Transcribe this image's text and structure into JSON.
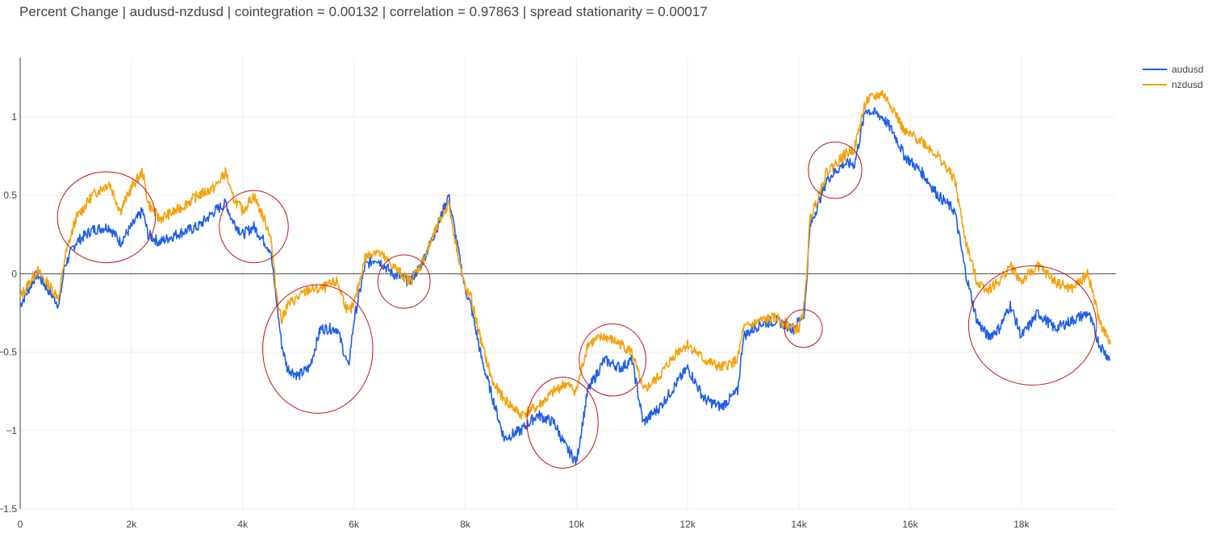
{
  "chart_data": {
    "type": "line",
    "title": "Percent Change | audusd-nzdusd | cointegration = 0.00132 | correlation = 0.97863 | spread stationarity = 0.00017",
    "xlabel": "",
    "ylabel": "",
    "xlim": [
      0,
      19700
    ],
    "ylim": [
      -1.5,
      1.38
    ],
    "x_ticks": [
      {
        "value": 0,
        "label": "0"
      },
      {
        "value": 2000,
        "label": "2k"
      },
      {
        "value": 4000,
        "label": "4k"
      },
      {
        "value": 6000,
        "label": "6k"
      },
      {
        "value": 8000,
        "label": "8k"
      },
      {
        "value": 10000,
        "label": "10k"
      },
      {
        "value": 12000,
        "label": "12k"
      },
      {
        "value": 14000,
        "label": "14k"
      },
      {
        "value": 16000,
        "label": "16k"
      },
      {
        "value": 18000,
        "label": "18k"
      }
    ],
    "y_ticks": [
      {
        "value": 1,
        "label": "1"
      },
      {
        "value": 0.5,
        "label": "0.5"
      },
      {
        "value": 0,
        "label": "0"
      },
      {
        "value": -0.5,
        "label": "−0.5"
      },
      {
        "value": -1,
        "label": "−1"
      },
      {
        "value": -1.5,
        "label": "−1.5"
      }
    ],
    "grid": true,
    "zero_line": true,
    "legend": {
      "position": "top-right"
    },
    "x": [
      0,
      300,
      700,
      800,
      1000,
      1300,
      1600,
      1800,
      2000,
      2200,
      2300,
      2500,
      2800,
      3200,
      3500,
      3700,
      3800,
      4000,
      4200,
      4500,
      4600,
      4700,
      4800,
      5000,
      5200,
      5400,
      5700,
      5900,
      6000,
      6200,
      6400,
      6700,
      7000,
      7200,
      7500,
      7700,
      7800,
      8000,
      8100,
      8300,
      8500,
      8700,
      9000,
      9300,
      9600,
      9800,
      10000,
      10200,
      10500,
      10800,
      11000,
      11200,
      11500,
      11800,
      12000,
      12300,
      12600,
      12900,
      13000,
      13300,
      13600,
      13900,
      14000,
      14100,
      14200,
      14500,
      14800,
      15000,
      15200,
      15500,
      15700,
      15900,
      16200,
      16500,
      16800,
      17000,
      17200,
      17400,
      17600,
      17800,
      18000,
      18300,
      18600,
      18900,
      19200,
      19400,
      19600
    ],
    "series": [
      {
        "name": "audusd",
        "color": "#1f5fe8",
        "values": [
          -0.2,
          0.0,
          -0.2,
          0.05,
          0.2,
          0.28,
          0.3,
          0.2,
          0.3,
          0.4,
          0.25,
          0.2,
          0.25,
          0.3,
          0.4,
          0.45,
          0.35,
          0.25,
          0.3,
          0.15,
          -0.15,
          -0.45,
          -0.6,
          -0.65,
          -0.6,
          -0.35,
          -0.35,
          -0.6,
          -0.3,
          0.05,
          0.1,
          0.0,
          -0.05,
          0.05,
          0.3,
          0.5,
          0.3,
          -0.1,
          -0.2,
          -0.55,
          -0.8,
          -1.05,
          -1.0,
          -0.9,
          -0.95,
          -1.1,
          -1.2,
          -0.75,
          -0.55,
          -0.6,
          -0.55,
          -0.95,
          -0.85,
          -0.7,
          -0.6,
          -0.8,
          -0.85,
          -0.75,
          -0.4,
          -0.32,
          -0.3,
          -0.35,
          -0.3,
          -0.25,
          0.3,
          0.6,
          0.7,
          0.7,
          1.05,
          1.0,
          0.9,
          0.75,
          0.65,
          0.5,
          0.4,
          0.0,
          -0.3,
          -0.4,
          -0.35,
          -0.2,
          -0.4,
          -0.25,
          -0.35,
          -0.3,
          -0.25,
          -0.45,
          -0.55
        ]
      },
      {
        "name": "nzdusd",
        "color": "#f5a20c",
        "values": [
          -0.15,
          0.02,
          -0.15,
          0.1,
          0.35,
          0.5,
          0.58,
          0.4,
          0.55,
          0.65,
          0.45,
          0.35,
          0.4,
          0.5,
          0.55,
          0.65,
          0.5,
          0.4,
          0.5,
          0.25,
          -0.1,
          -0.3,
          -0.2,
          -0.15,
          -0.1,
          -0.1,
          -0.05,
          -0.25,
          -0.2,
          0.1,
          0.15,
          0.05,
          -0.05,
          0.05,
          0.3,
          0.45,
          0.25,
          -0.1,
          -0.15,
          -0.45,
          -0.7,
          -0.8,
          -0.9,
          -0.85,
          -0.75,
          -0.7,
          -0.75,
          -0.45,
          -0.4,
          -0.45,
          -0.5,
          -0.75,
          -0.65,
          -0.5,
          -0.45,
          -0.55,
          -0.6,
          -0.55,
          -0.35,
          -0.3,
          -0.28,
          -0.35,
          -0.35,
          -0.2,
          0.35,
          0.65,
          0.75,
          0.8,
          1.1,
          1.15,
          1.05,
          0.9,
          0.85,
          0.75,
          0.6,
          0.2,
          -0.05,
          -0.1,
          -0.05,
          0.05,
          -0.05,
          0.05,
          -0.05,
          -0.1,
          0.0,
          -0.3,
          -0.45
        ]
      }
    ],
    "annotations": [
      {
        "type": "circle",
        "x": 1550,
        "y": 0.36,
        "rx": 880,
        "ry": 0.29,
        "color": "#c0141c"
      },
      {
        "type": "circle",
        "x": 4200,
        "y": 0.3,
        "rx": 620,
        "ry": 0.23,
        "color": "#c0141c"
      },
      {
        "type": "circle",
        "x": 5350,
        "y": -0.48,
        "rx": 990,
        "ry": 0.41,
        "color": "#c0141c"
      },
      {
        "type": "circle",
        "x": 6900,
        "y": -0.05,
        "rx": 470,
        "ry": 0.17,
        "color": "#c0141c"
      },
      {
        "type": "circle",
        "x": 9750,
        "y": -0.95,
        "rx": 640,
        "ry": 0.29,
        "color": "#c0141c"
      },
      {
        "type": "circle",
        "x": 10650,
        "y": -0.55,
        "rx": 600,
        "ry": 0.23,
        "color": "#c0141c"
      },
      {
        "type": "circle",
        "x": 14080,
        "y": -0.35,
        "rx": 340,
        "ry": 0.12,
        "color": "#c0141c"
      },
      {
        "type": "circle",
        "x": 14650,
        "y": 0.66,
        "rx": 480,
        "ry": 0.18,
        "color": "#c0141c"
      },
      {
        "type": "circle",
        "x": 18200,
        "y": -0.33,
        "rx": 1150,
        "ry": 0.38,
        "color": "#c0141c"
      }
    ]
  }
}
